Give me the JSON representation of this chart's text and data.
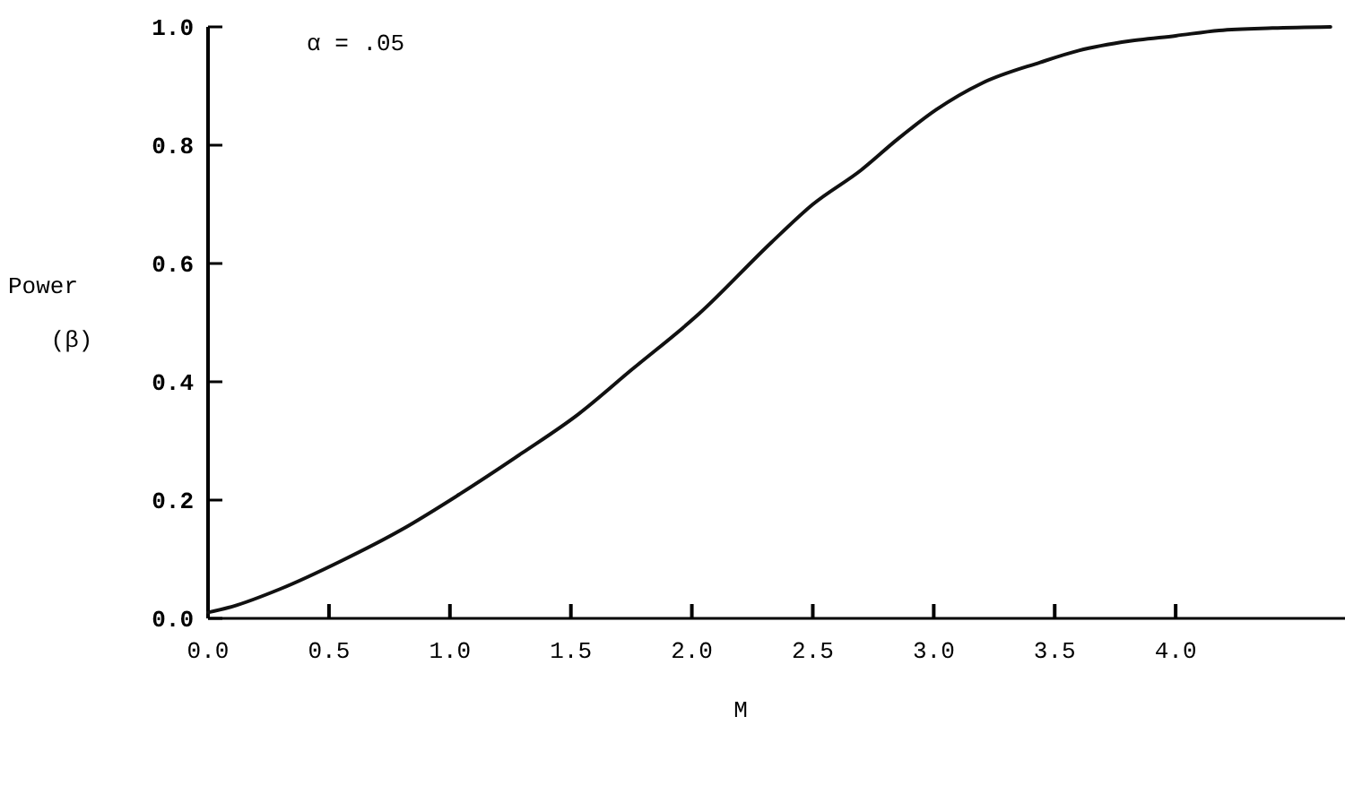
{
  "chart_data": {
    "type": "line",
    "xlabel": "M",
    "ylabel": "Power (β)",
    "annotations": [
      "α = .05"
    ],
    "x": [
      0,
      0.1,
      0.3,
      0.55,
      0.8,
      1.04,
      1.3,
      1.53,
      1.75,
      2.03,
      2.33,
      2.5,
      2.7,
      2.85,
      3.01,
      3.2,
      3.44,
      3.6,
      3.81,
      4.0,
      4.18,
      4.4,
      4.64
    ],
    "series": [
      {
        "color": "#111111",
        "values": [
          0.01,
          0.02,
          0.05,
          0.097,
          0.15,
          0.21,
          0.28,
          0.345,
          0.42,
          0.515,
          0.636,
          0.7,
          0.758,
          0.81,
          0.86,
          0.905,
          0.94,
          0.96,
          0.976,
          0.985,
          0.994,
          0.998,
          1.0
        ]
      }
    ],
    "xlim": [
      0,
      4.7
    ],
    "ylim": [
      0,
      1
    ],
    "xticks": [
      {
        "value": 0,
        "label": "0.0"
      },
      0.5,
      {
        "value": 1,
        "label": "1.0"
      },
      1.5,
      {
        "value": 2,
        "label": "2.0"
      },
      2.5,
      {
        "value": 3,
        "label": "3.0"
      },
      3.5,
      {
        "value": 4,
        "label": "4.0"
      }
    ],
    "yticks": [
      {
        "value": 0,
        "label": "0.0"
      },
      0.2,
      0.4,
      0.6,
      0.8,
      {
        "value": 1,
        "label": "1.0"
      }
    ],
    "grid": false,
    "marker": "none",
    "line_style": "solid"
  }
}
